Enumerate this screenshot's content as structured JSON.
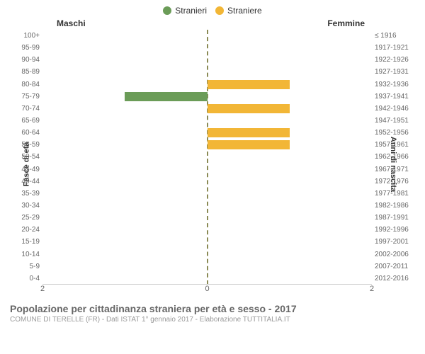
{
  "type": "population-pyramid",
  "legend": {
    "items": [
      {
        "label": "Stranieri",
        "color": "#6b9c58"
      },
      {
        "label": "Straniere",
        "color": "#f2b636"
      }
    ]
  },
  "header": {
    "left": "Maschi",
    "right": "Femmine"
  },
  "axis_titles": {
    "left": "Fasce di età",
    "right": "Anni di nascita"
  },
  "x_axis": {
    "min": -2,
    "max": 2,
    "ticks": [
      {
        "pos": 0,
        "label": "2"
      },
      {
        "pos": 50,
        "label": "0"
      },
      {
        "pos": 100,
        "label": "2"
      }
    ]
  },
  "bar_colors": {
    "male": "#6b9c58",
    "female": "#f2b636"
  },
  "rows": [
    {
      "age": "100+",
      "birth": "≤ 1916",
      "m": 0,
      "f": 0
    },
    {
      "age": "95-99",
      "birth": "1917-1921",
      "m": 0,
      "f": 0
    },
    {
      "age": "90-94",
      "birth": "1922-1926",
      "m": 0,
      "f": 0
    },
    {
      "age": "85-89",
      "birth": "1927-1931",
      "m": 0,
      "f": 0
    },
    {
      "age": "80-84",
      "birth": "1932-1936",
      "m": 0,
      "f": 1
    },
    {
      "age": "75-79",
      "birth": "1937-1941",
      "m": 1,
      "f": 0
    },
    {
      "age": "70-74",
      "birth": "1942-1946",
      "m": 0,
      "f": 1
    },
    {
      "age": "65-69",
      "birth": "1947-1951",
      "m": 0,
      "f": 0
    },
    {
      "age": "60-64",
      "birth": "1952-1956",
      "m": 0,
      "f": 1
    },
    {
      "age": "55-59",
      "birth": "1957-1961",
      "m": 0,
      "f": 1
    },
    {
      "age": "50-54",
      "birth": "1962-1966",
      "m": 0,
      "f": 0
    },
    {
      "age": "45-49",
      "birth": "1967-1971",
      "m": 0,
      "f": 0
    },
    {
      "age": "40-44",
      "birth": "1972-1976",
      "m": 0,
      "f": 0
    },
    {
      "age": "35-39",
      "birth": "1977-1981",
      "m": 0,
      "f": 0
    },
    {
      "age": "30-34",
      "birth": "1982-1986",
      "m": 0,
      "f": 0
    },
    {
      "age": "25-29",
      "birth": "1987-1991",
      "m": 0,
      "f": 0
    },
    {
      "age": "20-24",
      "birth": "1992-1996",
      "m": 0,
      "f": 0
    },
    {
      "age": "15-19",
      "birth": "1997-2001",
      "m": 0,
      "f": 0
    },
    {
      "age": "10-14",
      "birth": "2002-2006",
      "m": 0,
      "f": 0
    },
    {
      "age": "5-9",
      "birth": "2007-2011",
      "m": 0,
      "f": 0
    },
    {
      "age": "0-4",
      "birth": "2012-2016",
      "m": 0,
      "f": 0
    }
  ],
  "footer": {
    "title": "Popolazione per cittadinanza straniera per età e sesso - 2017",
    "subtitle": "COMUNE DI TERELLE (FR) - Dati ISTAT 1° gennaio 2017 - Elaborazione TUTTITALIA.IT"
  }
}
